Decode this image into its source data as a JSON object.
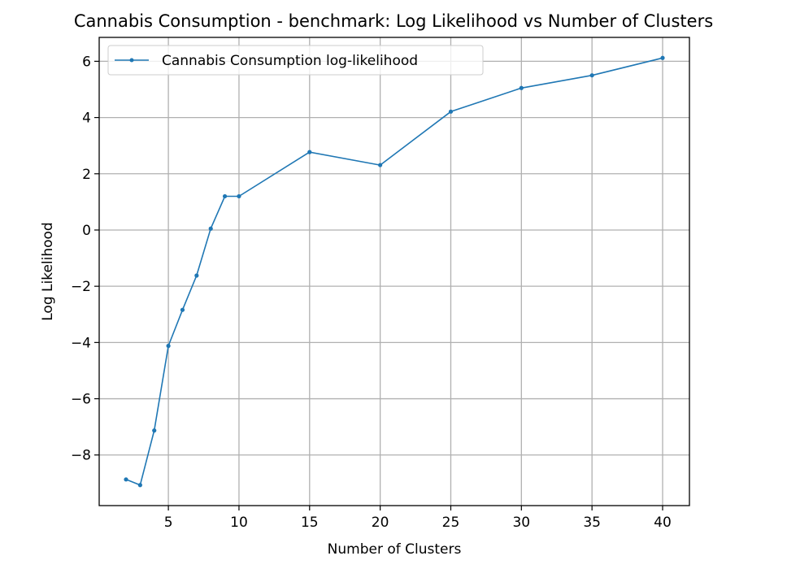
{
  "chart_data": {
    "type": "line",
    "title": "Cannabis Consumption - benchmark: Log Likelihood vs Number of Clusters",
    "xlabel": "Number of Clusters",
    "ylabel": "Log Likelihood",
    "xlim": [
      0.1,
      41.9
    ],
    "ylim": [
      -9.8,
      6.85
    ],
    "xticks": [
      5,
      10,
      15,
      20,
      25,
      30,
      35,
      40
    ],
    "yticks": [
      -8,
      -6,
      -4,
      -2,
      0,
      2,
      4,
      6
    ],
    "grid": true,
    "legend_position": "top-left",
    "series": [
      {
        "name": "Cannabis Consumption log-likelihood",
        "color": "#1f77b4",
        "x": [
          2,
          3,
          4,
          5,
          6,
          7,
          8,
          9,
          10,
          15,
          20,
          25,
          30,
          35,
          40
        ],
        "y": [
          -8.87,
          -9.07,
          -7.13,
          -4.12,
          -2.84,
          -1.62,
          0.05,
          1.2,
          1.2,
          2.77,
          2.31,
          4.21,
          5.05,
          5.5,
          6.12
        ]
      }
    ]
  }
}
